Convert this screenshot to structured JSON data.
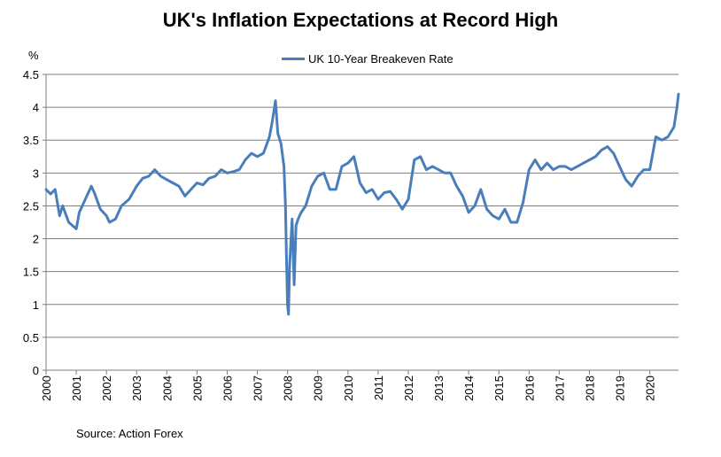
{
  "chart_data": {
    "type": "line",
    "title": "UK's Inflation Expectations at Record High",
    "ylabel": "%",
    "xlabel": "",
    "ylim": [
      0,
      4.5
    ],
    "yticks": [
      "0",
      "0.5",
      "1",
      "1.5",
      "2",
      "2.5",
      "3",
      "3.5",
      "4",
      "4.5"
    ],
    "xlim": [
      2000,
      2020.95
    ],
    "xticks": [
      "2000",
      "2001",
      "2002",
      "2003",
      "2004",
      "2005",
      "2006",
      "2007",
      "2008",
      "2009",
      "2010",
      "2011",
      "2012",
      "2013",
      "2014",
      "2015",
      "2016",
      "2017",
      "2018",
      "2019",
      "2020"
    ],
    "grid": "horizontal",
    "legend_position": "top-center",
    "series": [
      {
        "name": "UK 10-Year Breakeven Rate",
        "color": "#4a7ebb",
        "x": [
          2000.0,
          2000.15,
          2000.3,
          2000.45,
          2000.55,
          2000.75,
          2001.0,
          2001.1,
          2001.3,
          2001.5,
          2001.6,
          2001.8,
          2002.0,
          2002.1,
          2002.3,
          2002.5,
          2002.75,
          2003.0,
          2003.2,
          2003.4,
          2003.6,
          2003.8,
          2004.0,
          2004.2,
          2004.4,
          2004.6,
          2004.8,
          2005.0,
          2005.2,
          2005.4,
          2005.6,
          2005.8,
          2006.0,
          2006.2,
          2006.4,
          2006.6,
          2006.8,
          2007.0,
          2007.2,
          2007.4,
          2007.5,
          2007.6,
          2007.68,
          2007.78,
          2007.88,
          2007.93,
          2007.97,
          2008.0,
          2008.03,
          2008.07,
          2008.15,
          2008.22,
          2008.28,
          2008.35,
          2008.45,
          2008.6,
          2008.8,
          2009.0,
          2009.2,
          2009.4,
          2009.6,
          2009.8,
          2010.0,
          2010.2,
          2010.4,
          2010.6,
          2010.8,
          2011.0,
          2011.2,
          2011.4,
          2011.6,
          2011.8,
          2012.0,
          2012.2,
          2012.4,
          2012.6,
          2012.8,
          2013.0,
          2013.2,
          2013.4,
          2013.6,
          2013.8,
          2014.0,
          2014.2,
          2014.4,
          2014.6,
          2014.8,
          2015.0,
          2015.2,
          2015.4,
          2015.6,
          2015.8,
          2016.0,
          2016.2,
          2016.4,
          2016.6,
          2016.8,
          2017.0,
          2017.2,
          2017.4,
          2017.6,
          2017.8,
          2018.0,
          2018.2,
          2018.4,
          2018.6,
          2018.8,
          2019.0,
          2019.2,
          2019.4,
          2019.6,
          2019.8,
          2020.0,
          2020.2,
          2020.4,
          2020.6,
          2020.8,
          2020.9,
          2020.95
        ],
        "values": [
          2.75,
          2.68,
          2.75,
          2.35,
          2.5,
          2.25,
          2.15,
          2.4,
          2.6,
          2.8,
          2.7,
          2.45,
          2.35,
          2.25,
          2.3,
          2.5,
          2.6,
          2.8,
          2.92,
          2.95,
          3.05,
          2.95,
          2.9,
          2.85,
          2.8,
          2.65,
          2.75,
          2.85,
          2.82,
          2.92,
          2.95,
          3.05,
          3.0,
          3.02,
          3.05,
          3.2,
          3.3,
          3.25,
          3.3,
          3.55,
          3.8,
          4.1,
          3.6,
          3.45,
          3.1,
          2.5,
          1.6,
          1.0,
          0.85,
          1.6,
          2.3,
          1.3,
          2.2,
          2.3,
          2.4,
          2.5,
          2.8,
          2.95,
          3.0,
          2.75,
          2.75,
          3.1,
          3.15,
          3.25,
          2.85,
          2.7,
          2.75,
          2.6,
          2.7,
          2.72,
          2.6,
          2.45,
          2.6,
          3.2,
          3.25,
          3.05,
          3.1,
          3.05,
          3.0,
          3.0,
          2.8,
          2.65,
          2.4,
          2.5,
          2.75,
          2.45,
          2.35,
          2.3,
          2.45,
          2.25,
          2.25,
          2.55,
          3.05,
          3.2,
          3.05,
          3.15,
          3.05,
          3.1,
          3.1,
          3.05,
          3.1,
          3.15,
          3.2,
          3.25,
          3.35,
          3.4,
          3.3,
          3.1,
          2.9,
          2.8,
          2.95,
          3.05,
          3.05,
          3.55,
          3.5,
          3.55,
          3.7,
          4.0,
          4.2
        ]
      }
    ],
    "source": "Source: Action Forex"
  }
}
